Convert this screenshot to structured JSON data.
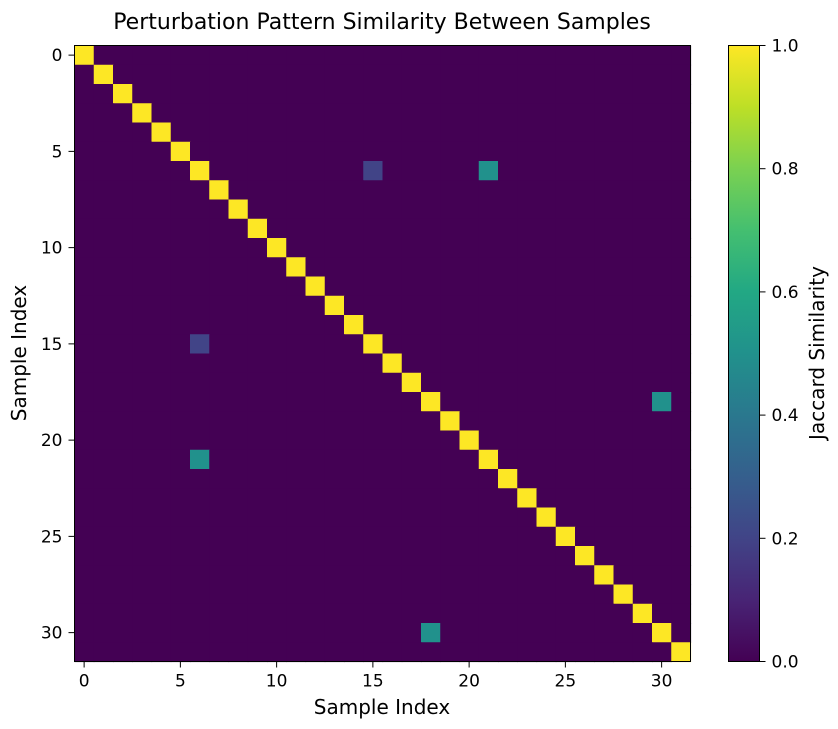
{
  "chart_data": {
    "type": "heatmap",
    "title": "Perturbation Pattern Similarity Between Samples",
    "xlabel": "Sample Index",
    "ylabel": "Sample Index",
    "n": 32,
    "default_value": 0.0,
    "diagonal_value": 1.0,
    "offdiagonal_cells": [
      {
        "row": 6,
        "col": 15,
        "value": 0.2
      },
      {
        "row": 15,
        "col": 6,
        "value": 0.2
      },
      {
        "row": 6,
        "col": 21,
        "value": 0.5
      },
      {
        "row": 21,
        "col": 6,
        "value": 0.5
      },
      {
        "row": 18,
        "col": 30,
        "value": 0.5
      },
      {
        "row": 30,
        "col": 18,
        "value": 0.5
      }
    ],
    "x_ticks": [
      0,
      5,
      10,
      15,
      20,
      25,
      30
    ],
    "y_ticks": [
      0,
      5,
      10,
      15,
      20,
      25,
      30
    ],
    "colorbar": {
      "label": "Jaccard Similarity",
      "colormap": "viridis",
      "range": [
        0.0,
        1.0
      ],
      "ticks": [
        "0.0",
        "0.2",
        "0.4",
        "0.6",
        "0.8",
        "1.0"
      ]
    },
    "grid": false
  }
}
